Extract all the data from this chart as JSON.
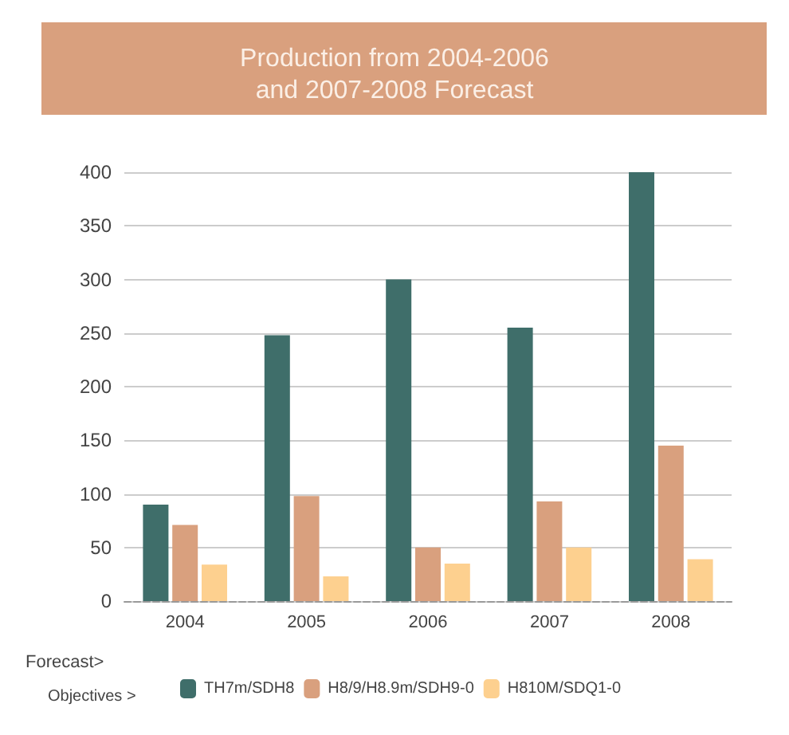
{
  "chart_data": {
    "type": "bar",
    "title": "Production from 2004-2006\nand 2007-2008 Forecast",
    "xlabel": "Forecast>",
    "legend_title": "Objectives >",
    "categories": [
      "2004",
      "2005",
      "2006",
      "2007",
      "2008"
    ],
    "series": [
      {
        "name": "TH7m/SDH8",
        "color": "#3f6e6a",
        "values": [
          90,
          248,
          300,
          255,
          400
        ]
      },
      {
        "name": "H8/9/H8.9m/SDH9-0",
        "color": "#d9a07e",
        "values": [
          71,
          98,
          50,
          93,
          145
        ]
      },
      {
        "name": "H810M/SDQ1-0",
        "color": "#fdd08f",
        "values": [
          34,
          23,
          35,
          50,
          39
        ]
      }
    ],
    "ylim": [
      0,
      400
    ],
    "yticks": [
      0,
      50,
      100,
      150,
      200,
      250,
      300,
      350,
      400
    ],
    "grid": "y",
    "legend": "bottom"
  }
}
